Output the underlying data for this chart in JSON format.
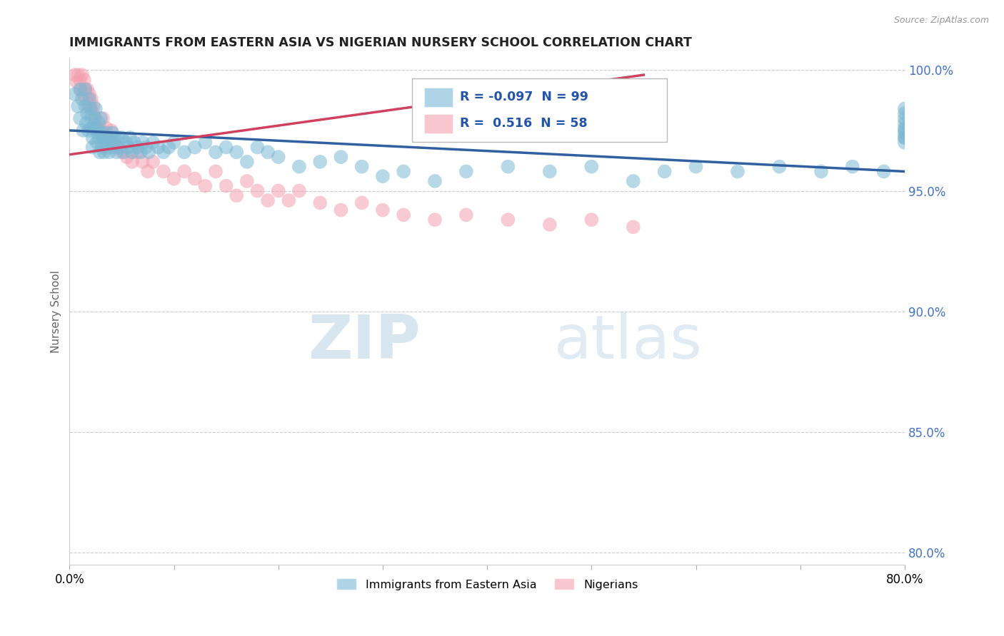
{
  "title": "IMMIGRANTS FROM EASTERN ASIA VS NIGERIAN NURSERY SCHOOL CORRELATION CHART",
  "source": "Source: ZipAtlas.com",
  "ylabel": "Nursery School",
  "xmin": 0.0,
  "xmax": 0.8,
  "ymin": 0.795,
  "ymax": 1.005,
  "yticks": [
    0.8,
    0.85,
    0.9,
    0.95,
    1.0
  ],
  "ytick_labels": [
    "80.0%",
    "85.0%",
    "90.0%",
    "95.0%",
    "100.0%"
  ],
  "xticks": [
    0.0,
    0.1,
    0.2,
    0.3,
    0.4,
    0.5,
    0.6,
    0.7,
    0.8
  ],
  "legend_labels_bottom": [
    "Immigrants from Eastern Asia",
    "Nigerians"
  ],
  "blue_color": "#7bb8d4",
  "pink_color": "#f4a0b0",
  "blue_line_color": "#3060a0",
  "pink_line_color": "#d04060",
  "watermark_zip": "ZIP",
  "watermark_atlas": "atlas",
  "blue_scatter_x": [
    0.005,
    0.008,
    0.01,
    0.01,
    0.012,
    0.013,
    0.015,
    0.015,
    0.016,
    0.017,
    0.018,
    0.019,
    0.02,
    0.02,
    0.021,
    0.022,
    0.022,
    0.023,
    0.024,
    0.025,
    0.025,
    0.026,
    0.027,
    0.028,
    0.028,
    0.029,
    0.03,
    0.03,
    0.031,
    0.032,
    0.033,
    0.034,
    0.035,
    0.036,
    0.037,
    0.038,
    0.04,
    0.041,
    0.042,
    0.043,
    0.045,
    0.046,
    0.048,
    0.05,
    0.052,
    0.054,
    0.056,
    0.058,
    0.06,
    0.062,
    0.065,
    0.068,
    0.07,
    0.073,
    0.076,
    0.08,
    0.085,
    0.09,
    0.095,
    0.1,
    0.11,
    0.12,
    0.13,
    0.14,
    0.15,
    0.16,
    0.17,
    0.18,
    0.19,
    0.2,
    0.22,
    0.24,
    0.26,
    0.28,
    0.3,
    0.32,
    0.35,
    0.38,
    0.42,
    0.46,
    0.5,
    0.54,
    0.57,
    0.6,
    0.64,
    0.68,
    0.72,
    0.75,
    0.78,
    0.8,
    0.8,
    0.8,
    0.8,
    0.8,
    0.8,
    0.8,
    0.8,
    0.8,
    0.8
  ],
  "blue_scatter_y": [
    0.99,
    0.985,
    0.992,
    0.98,
    0.988,
    0.975,
    0.992,
    0.985,
    0.978,
    0.982,
    0.975,
    0.988,
    0.984,
    0.976,
    0.98,
    0.972,
    0.968,
    0.976,
    0.98,
    0.984,
    0.976,
    0.97,
    0.974,
    0.978,
    0.972,
    0.966,
    0.98,
    0.974,
    0.968,
    0.972,
    0.966,
    0.97,
    0.974,
    0.968,
    0.972,
    0.966,
    0.97,
    0.974,
    0.968,
    0.972,
    0.966,
    0.972,
    0.968,
    0.972,
    0.966,
    0.97,
    0.968,
    0.972,
    0.966,
    0.97,
    0.968,
    0.966,
    0.97,
    0.968,
    0.966,
    0.97,
    0.968,
    0.966,
    0.968,
    0.97,
    0.966,
    0.968,
    0.97,
    0.966,
    0.968,
    0.966,
    0.962,
    0.968,
    0.966,
    0.964,
    0.96,
    0.962,
    0.964,
    0.96,
    0.956,
    0.958,
    0.954,
    0.958,
    0.96,
    0.958,
    0.96,
    0.954,
    0.958,
    0.96,
    0.958,
    0.96,
    0.958,
    0.96,
    0.958,
    0.97,
    0.972,
    0.972,
    0.974,
    0.975,
    0.976,
    0.978,
    0.98,
    0.982,
    0.984
  ],
  "pink_scatter_x": [
    0.005,
    0.007,
    0.008,
    0.01,
    0.011,
    0.012,
    0.013,
    0.014,
    0.015,
    0.016,
    0.017,
    0.018,
    0.019,
    0.02,
    0.021,
    0.022,
    0.023,
    0.025,
    0.027,
    0.03,
    0.032,
    0.035,
    0.038,
    0.04,
    0.043,
    0.046,
    0.05,
    0.055,
    0.06,
    0.065,
    0.07,
    0.075,
    0.08,
    0.09,
    0.1,
    0.11,
    0.12,
    0.13,
    0.14,
    0.15,
    0.16,
    0.17,
    0.18,
    0.19,
    0.2,
    0.21,
    0.22,
    0.24,
    0.26,
    0.28,
    0.3,
    0.32,
    0.35,
    0.38,
    0.42,
    0.46,
    0.5,
    0.54
  ],
  "pink_scatter_y": [
    0.998,
    0.995,
    0.998,
    0.996,
    0.992,
    0.998,
    0.99,
    0.996,
    0.992,
    0.988,
    0.992,
    0.985,
    0.99,
    0.985,
    0.988,
    0.982,
    0.985,
    0.98,
    0.976,
    0.975,
    0.98,
    0.976,
    0.972,
    0.975,
    0.97,
    0.968,
    0.966,
    0.964,
    0.962,
    0.966,
    0.962,
    0.958,
    0.962,
    0.958,
    0.955,
    0.958,
    0.955,
    0.952,
    0.958,
    0.952,
    0.948,
    0.954,
    0.95,
    0.946,
    0.95,
    0.946,
    0.95,
    0.945,
    0.942,
    0.945,
    0.942,
    0.94,
    0.938,
    0.94,
    0.938,
    0.936,
    0.938,
    0.935
  ],
  "blue_trend_x": [
    0.0,
    0.8
  ],
  "blue_trend_y": [
    0.975,
    0.958
  ],
  "pink_trend_x": [
    0.0,
    0.55
  ],
  "pink_trend_y": [
    0.965,
    0.998
  ]
}
